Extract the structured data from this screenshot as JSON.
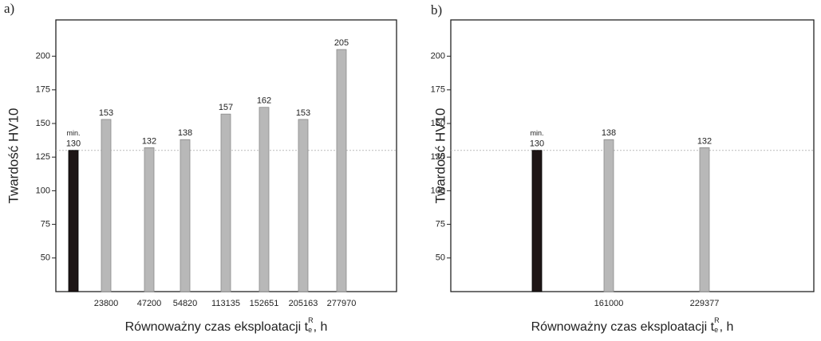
{
  "chart_data": [
    {
      "type": "bar",
      "panel": "a)",
      "ylabel": "Twardość HV10",
      "xlabel": {
        "main": "Równoważny czas eksploatacji t",
        "sub": "e",
        "sup": "R",
        "tail": ", h"
      },
      "categories": [
        null,
        "23800",
        "47200",
        "54820",
        "113135",
        "152651",
        "205163",
        "277970"
      ],
      "values": [
        130,
        153,
        132,
        138,
        157,
        162,
        153,
        205
      ],
      "colors": [
        "#1e1616",
        "#b8b8b8",
        "#b8b8b8",
        "#b8b8b8",
        "#b8b8b8",
        "#b8b8b8",
        "#b8b8b8",
        "#b8b8b8"
      ],
      "annotation": "min.",
      "reference_line": 130,
      "ylim": [
        25,
        227
      ],
      "yticks": [
        50,
        75,
        100,
        125,
        150,
        175,
        200
      ]
    },
    {
      "type": "bar",
      "panel": "b)",
      "ylabel": "Twardość HV10",
      "xlabel": {
        "main": "Równoważny czas eksploatacji t",
        "sub": "e",
        "sup": "R",
        "tail": ", h"
      },
      "categories": [
        null,
        "161000",
        "229377"
      ],
      "values": [
        130,
        138,
        132
      ],
      "colors": [
        "#1e1616",
        "#b8b8b8",
        "#b8b8b8"
      ],
      "annotation": "min.",
      "reference_line": 130,
      "ylim": [
        25,
        227
      ],
      "yticks": [
        50,
        75,
        100,
        125,
        150,
        175,
        200
      ]
    }
  ]
}
